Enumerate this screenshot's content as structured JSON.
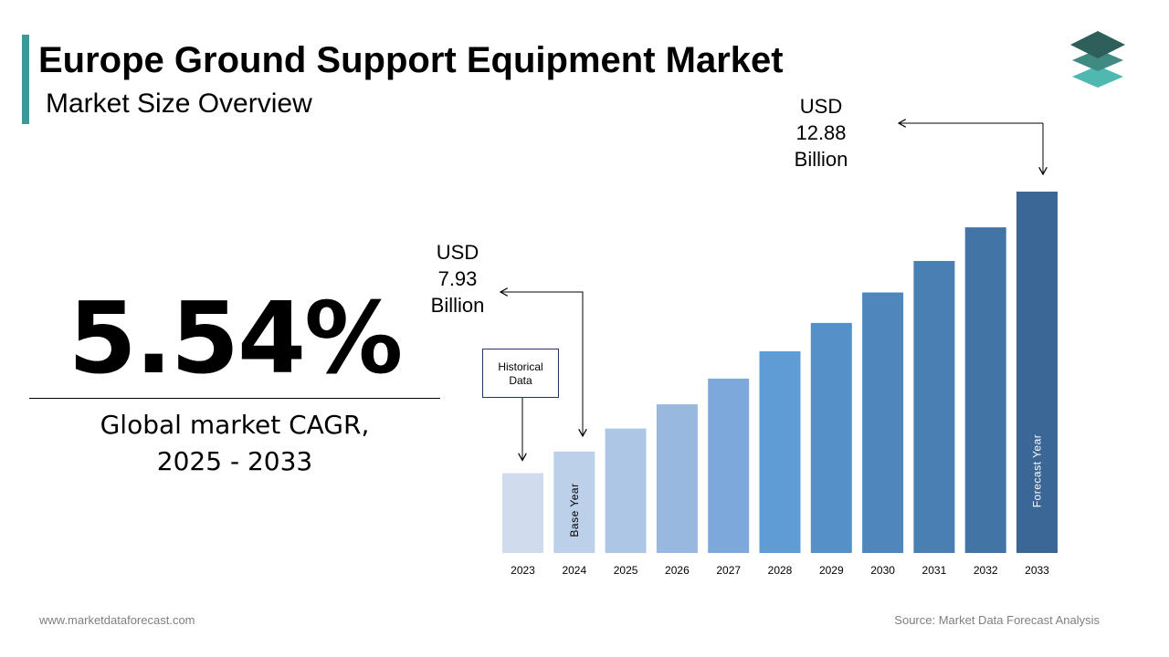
{
  "header": {
    "title": "Europe Ground Support Equipment Market",
    "subtitle": "Market Size Overview"
  },
  "logo": {
    "icon": "stacked-layers-icon",
    "colors": [
      "#2e5f5a",
      "#3f8a82",
      "#4fb8b0"
    ]
  },
  "cagr": {
    "value": "5.54%",
    "caption_line1": "Global market CAGR,",
    "caption_line2": "2025 - 2033"
  },
  "footer": {
    "website": "www.marketdataforecast.com",
    "source": "Source: Market Data Forecast Analysis"
  },
  "chart_data": {
    "type": "bar",
    "categories": [
      "2023",
      "2024",
      "2025",
      "2026",
      "2027",
      "2028",
      "2029",
      "2030",
      "2031",
      "2032",
      "2033"
    ],
    "values": [
      7.52,
      7.93,
      8.37,
      8.83,
      9.32,
      9.84,
      10.38,
      10.96,
      11.56,
      12.2,
      12.88
    ],
    "unit": "USD Billion",
    "ylim": [
      6.0,
      13.3
    ],
    "grid": false,
    "colors": [
      "#d0dcee",
      "#bdd0ea",
      "#aec6e6",
      "#98b8e0",
      "#7da8db",
      "#5f9bd5",
      "#5590c8",
      "#4f86bc",
      "#4a7fb3",
      "#4275a6",
      "#3a6795"
    ],
    "bar_labels": {
      "2024": "Base Year",
      "2033": "Forecast Year"
    },
    "annotations": {
      "historical": "Historical Data",
      "base_value": [
        "USD",
        "7.93",
        "Billion"
      ],
      "forecast_value": [
        "USD",
        "12.88",
        "Billion"
      ]
    }
  }
}
